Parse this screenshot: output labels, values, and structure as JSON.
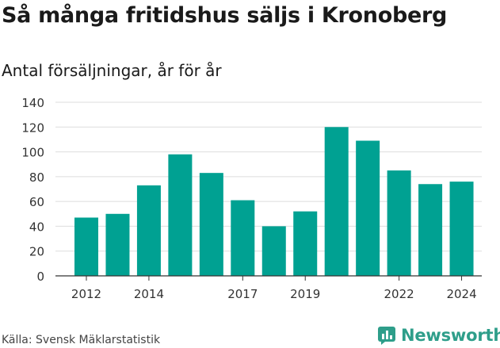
{
  "title": "Så många fritidshus säljs i Kronoberg",
  "subtitle": "Antal försäljningar, år för år",
  "source": "Källa: Svensk Mäklarstatistik",
  "brand": {
    "name": "Newsworthy",
    "icon": "newsworthy-logo-icon",
    "color": "#2e9e8a"
  },
  "colors": {
    "bar": "#00a192",
    "grid": "#dddddd",
    "axis": "#333333"
  },
  "chart_data": {
    "type": "bar",
    "categories": [
      "2012",
      "2013",
      "2014",
      "2015",
      "2016",
      "2017",
      "2018",
      "2019",
      "2020",
      "2021",
      "2022",
      "2023",
      "2024"
    ],
    "values": [
      47,
      50,
      73,
      98,
      83,
      61,
      40,
      52,
      120,
      109,
      85,
      74,
      76
    ],
    "x_tick_labels": [
      "2012",
      "",
      "2014",
      "",
      "",
      "2017",
      "",
      "2019",
      "",
      "",
      "2022",
      "",
      "2024"
    ],
    "y_ticks": [
      0,
      20,
      40,
      60,
      80,
      100,
      120,
      140
    ],
    "ylim": [
      0,
      140
    ],
    "grid": true,
    "legend": "none"
  }
}
